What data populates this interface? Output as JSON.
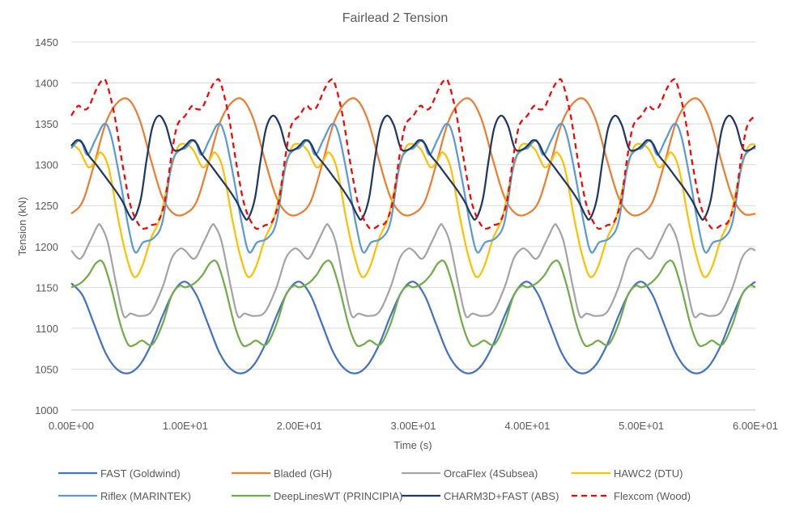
{
  "chart_data": {
    "type": "line",
    "title": "Fairlead 2 Tension",
    "xlabel": "Time (s)",
    "ylabel": "Tension (kN)",
    "xlim": [
      0,
      60
    ],
    "ylim": [
      1000,
      1450
    ],
    "x_tick_labels": [
      "0.00E+00",
      "1.00E+01",
      "2.00E+01",
      "3.00E+01",
      "4.00E+01",
      "5.00E+01",
      "6.00E+01"
    ],
    "y_tick_labels": [
      "1000",
      "1050",
      "1100",
      "1150",
      "1200",
      "1250",
      "1300",
      "1350",
      "1400",
      "1450"
    ],
    "grid": "horizontal",
    "legend": "bottom",
    "period_s": 10,
    "series": [
      {
        "name": "FAST (Goldwind)",
        "color": "#4472C4",
        "dash": "solid",
        "x": [
          0,
          1,
          2,
          3,
          4,
          5,
          6,
          7,
          8,
          9,
          10
        ],
        "y": [
          1155,
          1140,
          1105,
          1070,
          1050,
          1045,
          1055,
          1080,
          1115,
          1145,
          1157
        ]
      },
      {
        "name": "Bladed (GH)",
        "color": "#ED7D31",
        "dash": "solid",
        "x": [
          0,
          1,
          2,
          3,
          4,
          5,
          6,
          7,
          8,
          9,
          10
        ],
        "y": [
          1240,
          1255,
          1300,
          1350,
          1375,
          1380,
          1355,
          1305,
          1260,
          1240,
          1240
        ]
      },
      {
        "name": "OrcaFlex (4Subsea)",
        "color": "#A5A5A5",
        "dash": "solid",
        "x": [
          0,
          0.8,
          1.6,
          2.3,
          2.6,
          3.2,
          4,
          4.6,
          5.2,
          6,
          7,
          8,
          8.8,
          9.5,
          10
        ],
        "y": [
          1195,
          1185,
          1205,
          1225,
          1225,
          1205,
          1150,
          1115,
          1118,
          1115,
          1120,
          1150,
          1185,
          1197,
          1195
        ]
      },
      {
        "name": "HAWC2 (DTU)",
        "color": "#FFC000",
        "dash": "solid",
        "x": [
          0,
          0.7,
          1.5,
          2.1,
          2.6,
          3.3,
          4.1,
          4.8,
          5.5,
          6.2,
          7,
          7.8,
          8.5,
          9.3,
          10
        ],
        "y": [
          1325,
          1318,
          1297,
          1305,
          1315,
          1295,
          1235,
          1190,
          1163,
          1175,
          1210,
          1235,
          1280,
          1320,
          1325
        ]
      },
      {
        "name": "Riflex (MARINTEK)",
        "color": "#5B9BD5",
        "dash": "solid",
        "x": [
          0,
          0.8,
          1.4,
          2.1,
          2.9,
          3.5,
          4.3,
          5,
          5.6,
          6.3,
          7.2,
          8,
          8.8,
          9.5,
          10
        ],
        "y": [
          1320,
          1330,
          1312,
          1330,
          1350,
          1335,
          1280,
          1225,
          1193,
          1205,
          1210,
          1230,
          1300,
          1318,
          1320
        ]
      },
      {
        "name": "DeepLinesWT (PRINCIPIA)",
        "color": "#70AD47",
        "dash": "solid",
        "x": [
          0,
          0.8,
          1.5,
          2.2,
          2.8,
          3.5,
          4.3,
          5,
          5.6,
          6.2,
          7.1,
          8,
          8.8,
          9.5,
          10
        ],
        "y": [
          1150,
          1155,
          1165,
          1180,
          1180,
          1150,
          1105,
          1080,
          1080,
          1085,
          1080,
          1105,
          1140,
          1152,
          1150
        ]
      },
      {
        "name": "CHARM3D+FAST (ABS)",
        "color": "#203864",
        "dash": "solid",
        "x": [
          0,
          0.5,
          1,
          1.5,
          2.2,
          3,
          3.8,
          4.5,
          5.1,
          5.5,
          6.1,
          6.6,
          7.1,
          7.7,
          8.3,
          8.9,
          9.5,
          10
        ],
        "y": [
          1323,
          1330,
          1326,
          1312,
          1300,
          1285,
          1270,
          1255,
          1238,
          1234,
          1258,
          1305,
          1345,
          1360,
          1348,
          1320,
          1318,
          1323
        ]
      },
      {
        "name": "Flexcom (Wood)",
        "color": "#FF0000",
        "dash": "dash",
        "x": [
          0,
          0.6,
          1,
          1.5,
          2.2,
          2.7,
          3.1,
          3.8,
          4.5,
          5.2,
          6,
          6.5,
          7,
          7.6,
          8.2,
          8.8,
          9.3,
          10
        ],
        "y": [
          1360,
          1372,
          1368,
          1370,
          1392,
          1403,
          1400,
          1360,
          1300,
          1250,
          1225,
          1222,
          1226,
          1230,
          1255,
          1312,
          1348,
          1360
        ]
      }
    ]
  }
}
